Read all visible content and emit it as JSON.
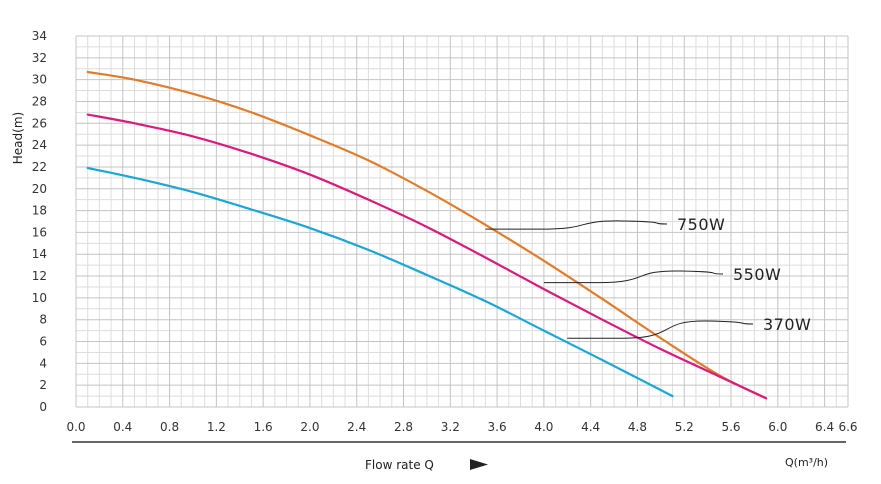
{
  "chart_data": {
    "type": "line",
    "ylabel": "Head(m)",
    "xlabel": "Flow rate Q",
    "xunit": "Q(m³/h)",
    "xlim": [
      0,
      6.6
    ],
    "ylim": [
      0,
      34
    ],
    "xticks": [
      "0.0",
      "0.4",
      "0.8",
      "1.2",
      "1.6",
      "2.0",
      "2.4",
      "2.8",
      "3.2",
      "3.6",
      "4.0",
      "4.4",
      "4.8",
      "5.2",
      "5.6",
      "6.0",
      "6.4",
      "6.6"
    ],
    "yticks": [
      "0",
      "2",
      "4",
      "6",
      "8",
      "10",
      "12",
      "14",
      "16",
      "18",
      "20",
      "22",
      "24",
      "26",
      "28",
      "30",
      "32",
      "34"
    ],
    "grid": true,
    "series": [
      {
        "name": "750W",
        "color": "#e07c2a",
        "x": [
          0.1,
          0.5,
          1.0,
          1.5,
          2.0,
          2.5,
          3.0,
          3.5,
          4.0,
          4.5,
          5.0,
          5.5,
          5.9
        ],
        "y": [
          30.7,
          30.0,
          28.7,
          27.0,
          24.9,
          22.6,
          19.8,
          16.7,
          13.4,
          9.9,
          6.3,
          2.9,
          0.8
        ]
      },
      {
        "name": "550W",
        "color": "#d81b7d",
        "x": [
          0.1,
          0.5,
          1.0,
          1.5,
          2.0,
          2.5,
          3.0,
          3.5,
          4.0,
          4.5,
          5.0,
          5.5,
          5.9
        ],
        "y": [
          26.8,
          26.0,
          24.8,
          23.2,
          21.3,
          19.0,
          16.5,
          13.7,
          10.8,
          8.0,
          5.3,
          2.8,
          0.8
        ]
      },
      {
        "name": "370W",
        "color": "#1aa7d6",
        "x": [
          0.1,
          0.5,
          1.0,
          1.5,
          2.0,
          2.5,
          3.0,
          3.5,
          4.0,
          4.5,
          5.1
        ],
        "y": [
          21.9,
          21.0,
          19.7,
          18.1,
          16.4,
          14.4,
          12.1,
          9.7,
          7.0,
          4.3,
          1.0
        ]
      }
    ],
    "annotations": [
      {
        "series": "750W",
        "label": "750W",
        "point": [
          3.5,
          16.3
        ]
      },
      {
        "series": "550W",
        "label": "550W",
        "point": [
          4.0,
          11.4
        ]
      },
      {
        "series": "370W",
        "label": "370W",
        "point": [
          4.2,
          6.3
        ]
      }
    ]
  }
}
